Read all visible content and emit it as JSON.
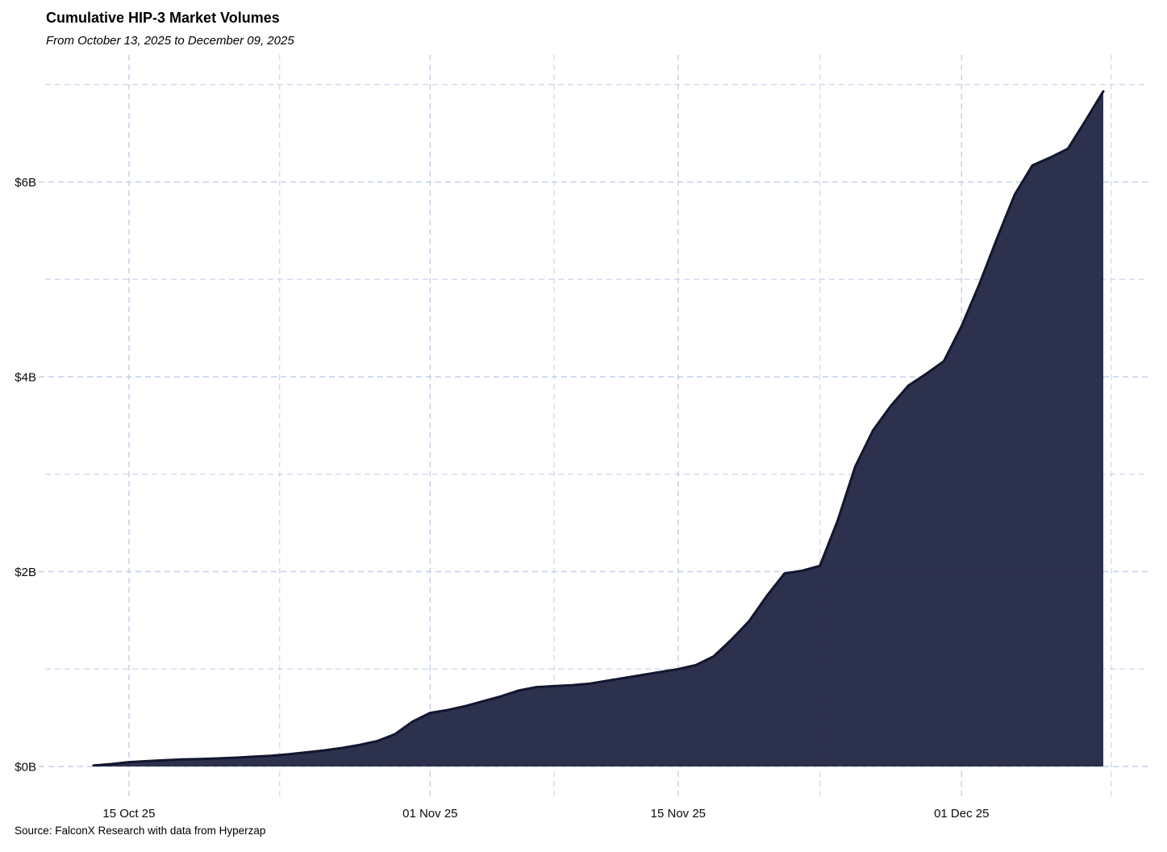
{
  "header": {
    "title": "Cumulative HIP-3 Market Volumes",
    "subtitle": "From October 13, 2025 to December 09, 2025"
  },
  "footer": {
    "source": "Source: FalconX Research with data from Hyperzap"
  },
  "chart_data": {
    "type": "area",
    "title": "Cumulative HIP-3 Market Volumes",
    "subtitle": "From October 13, 2025 to December 09, 2025",
    "series_name": "Cumulative HIP-3 market volume",
    "unit": "USD billions",
    "x": [
      "2025-10-13",
      "2025-10-14",
      "2025-10-15",
      "2025-10-16",
      "2025-10-17",
      "2025-10-18",
      "2025-10-19",
      "2025-10-20",
      "2025-10-21",
      "2025-10-22",
      "2025-10-23",
      "2025-10-24",
      "2025-10-25",
      "2025-10-26",
      "2025-10-27",
      "2025-10-28",
      "2025-10-29",
      "2025-10-30",
      "2025-10-31",
      "2025-11-01",
      "2025-11-02",
      "2025-11-03",
      "2025-11-04",
      "2025-11-05",
      "2025-11-06",
      "2025-11-07",
      "2025-11-08",
      "2025-11-09",
      "2025-11-10",
      "2025-11-11",
      "2025-11-12",
      "2025-11-13",
      "2025-11-14",
      "2025-11-15",
      "2025-11-16",
      "2025-11-17",
      "2025-11-18",
      "2025-11-19",
      "2025-11-20",
      "2025-11-21",
      "2025-11-22",
      "2025-11-23",
      "2025-11-24",
      "2025-11-25",
      "2025-11-26",
      "2025-11-27",
      "2025-11-28",
      "2025-11-29",
      "2025-11-30",
      "2025-12-01",
      "2025-12-02",
      "2025-12-03",
      "2025-12-04",
      "2025-12-05",
      "2025-12-06",
      "2025-12-07",
      "2025-12-08",
      "2025-12-09"
    ],
    "values": [
      0.01,
      0.025,
      0.045,
      0.055,
      0.065,
      0.072,
      0.077,
      0.083,
      0.09,
      0.1,
      0.11,
      0.125,
      0.145,
      0.165,
      0.19,
      0.22,
      0.26,
      0.33,
      0.46,
      0.55,
      0.58,
      0.62,
      0.67,
      0.72,
      0.78,
      0.815,
      0.825,
      0.835,
      0.85,
      0.88,
      0.91,
      0.94,
      0.97,
      1.0,
      1.04,
      1.13,
      1.3,
      1.49,
      1.75,
      1.98,
      2.01,
      2.06,
      2.52,
      3.08,
      3.45,
      3.7,
      3.91,
      4.03,
      4.16,
      4.52,
      4.95,
      5.42,
      5.87,
      6.17,
      6.25,
      6.34,
      6.63,
      6.93
    ],
    "ylim": [
      0,
      7.3
    ],
    "yticks_major": [
      {
        "value": 0,
        "label": "$0B"
      },
      {
        "value": 2,
        "label": "$2B"
      },
      {
        "value": 4,
        "label": "$4B"
      },
      {
        "value": 6,
        "label": "$6B"
      }
    ],
    "yticks_minor": [
      1,
      3,
      5,
      7
    ],
    "xticks_major": [
      {
        "date": "2025-10-15",
        "label": "15 Oct 25"
      },
      {
        "date": "2025-11-01",
        "label": "01 Nov 25"
      },
      {
        "date": "2025-11-15",
        "label": "15 Nov 25"
      },
      {
        "date": "2025-12-01",
        "label": "01 Dec 25"
      }
    ],
    "xticks_minor_days": [
      10.5,
      26,
      41,
      57.45
    ],
    "grid": "dashed",
    "legend": "none",
    "colors": {
      "background": "#ffffff",
      "area_fill": "#1c2140",
      "area_fill_opacity": 0.93,
      "line": "#12162f",
      "grid_major": "#c2cfe8",
      "grid_minor": "#d3dcef",
      "text": "#0a0a0a"
    }
  }
}
